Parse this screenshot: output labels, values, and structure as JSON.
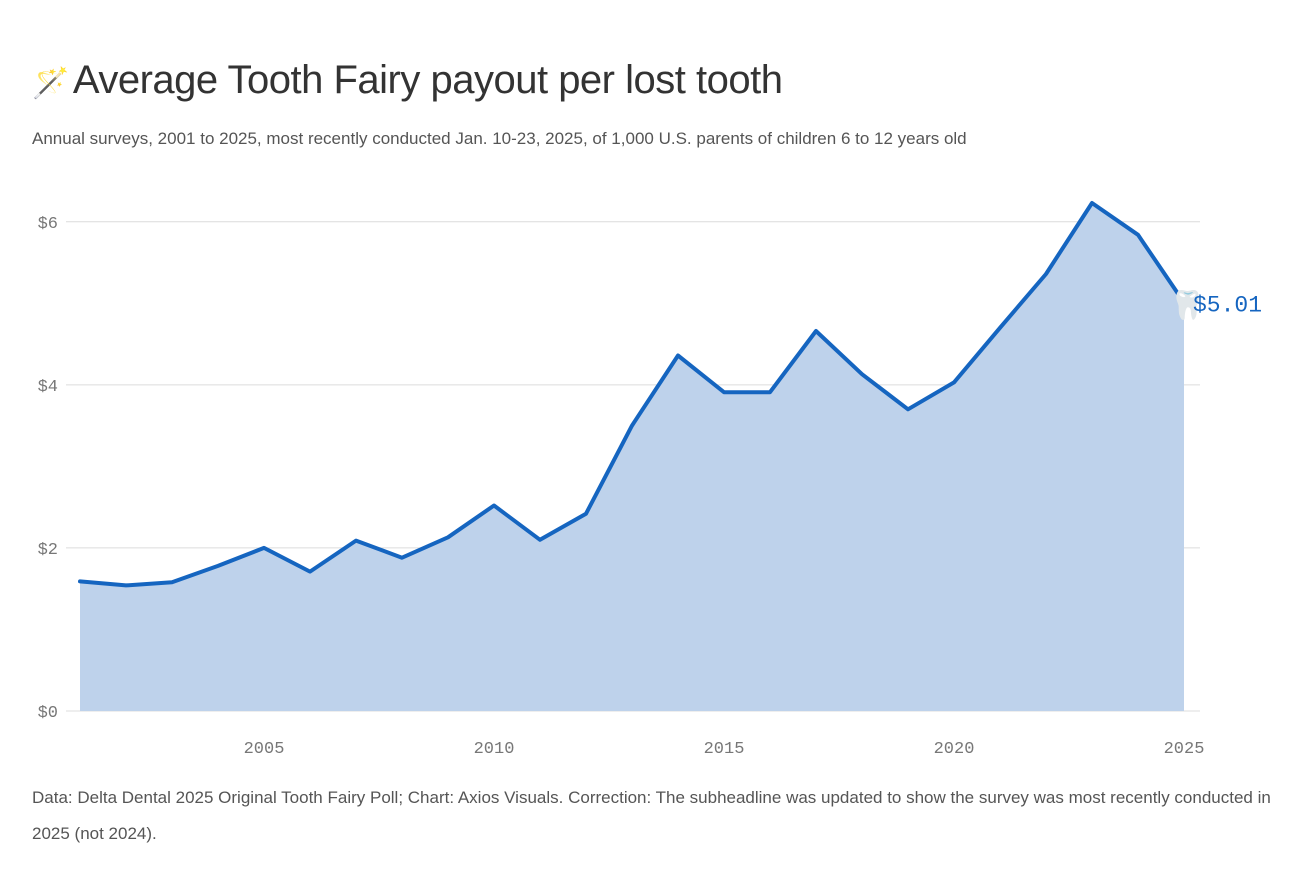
{
  "header": {
    "title_icon": "magic-wand-icon",
    "title_icon_glyph": "🪄",
    "title": "Average Tooth Fairy payout per lost tooth",
    "subtitle": "Annual surveys, 2001 to 2025, most recently conducted Jan. 10-23, 2025, of 1,000 U.S. parents of children 6 to 12 years old"
  },
  "chart_data": {
    "type": "area",
    "title": "Average Tooth Fairy payout per lost tooth",
    "xlabel": "",
    "ylabel": "",
    "x": [
      2001,
      2002,
      2003,
      2004,
      2005,
      2006,
      2007,
      2008,
      2009,
      2010,
      2011,
      2012,
      2013,
      2014,
      2015,
      2016,
      2017,
      2018,
      2019,
      2020,
      2021,
      2022,
      2023,
      2024,
      2025
    ],
    "series": [
      {
        "values": [
          1.59,
          1.54,
          1.58,
          1.78,
          2.0,
          1.71,
          2.09,
          1.88,
          2.13,
          2.52,
          2.1,
          2.42,
          3.5,
          4.36,
          3.91,
          3.91,
          4.66,
          4.13,
          3.7,
          4.03,
          4.7,
          5.36,
          6.23,
          5.84,
          5.01
        ],
        "color": "#1565c0",
        "fill": "#bed2eb"
      }
    ],
    "xlim": [
      2001,
      2025
    ],
    "ylim": [
      0,
      6.5
    ],
    "x_ticks": [
      2005,
      2010,
      2015,
      2020,
      2025
    ],
    "x_tick_labels": [
      "2005",
      "2010",
      "2015",
      "2020",
      "2025"
    ],
    "y_ticks": [
      0,
      2,
      4,
      6
    ],
    "y_tick_labels": [
      "$0",
      "$2",
      "$4",
      "$6"
    ],
    "grid": "horizontal",
    "end_label": {
      "icon": "tooth-icon",
      "glyph": "🦷",
      "text": "$5.01"
    }
  },
  "footer": {
    "note": "Data: Delta Dental 2025 Original Tooth Fairy Poll; Chart: Axios Visuals. Correction: The subheadline was updated to show the survey was most recently conducted in 2025 (not 2024)."
  }
}
